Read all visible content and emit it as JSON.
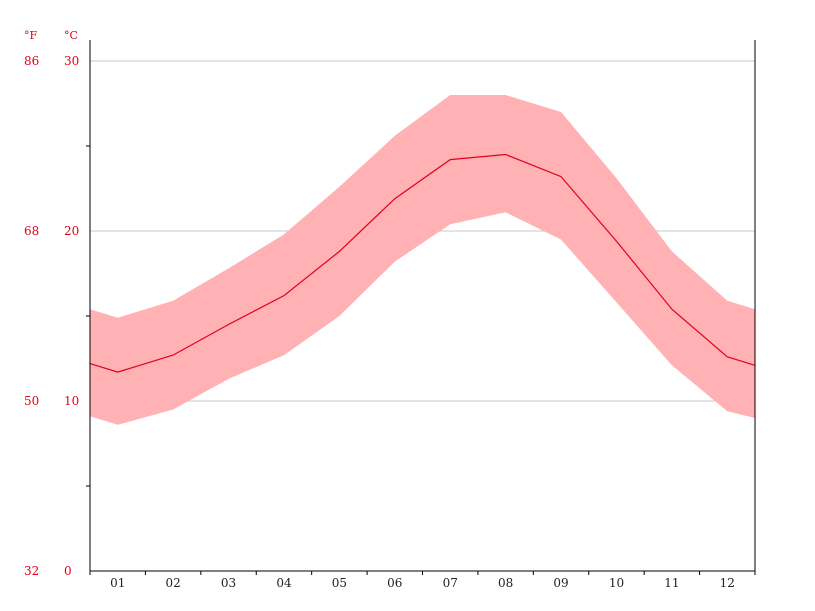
{
  "chart_data": {
    "type": "area",
    "categories": [
      "01",
      "02",
      "03",
      "04",
      "05",
      "06",
      "07",
      "08",
      "09",
      "10",
      "11",
      "12"
    ],
    "series": [
      {
        "role": "range-high",
        "values": [
          14.9,
          15.9,
          17.8,
          19.8,
          22.6,
          25.6,
          28.0,
          28.0,
          27.0,
          23.1,
          18.8,
          15.9
        ]
      },
      {
        "role": "mean",
        "values": [
          11.7,
          12.7,
          14.5,
          16.2,
          18.8,
          21.9,
          24.2,
          24.5,
          23.2,
          19.4,
          15.4,
          12.6
        ]
      },
      {
        "role": "range-low",
        "values": [
          8.6,
          9.5,
          11.3,
          12.7,
          15.0,
          18.2,
          20.4,
          21.1,
          19.5,
          15.8,
          12.1,
          9.4
        ]
      }
    ],
    "edges": {
      "left": {
        "high": 15.4,
        "mean": 12.2,
        "low": 9.1
      },
      "right": {
        "high": 15.4,
        "mean": 12.1,
        "low": 9.0
      }
    },
    "y_celsius": {
      "label": "°C",
      "ticks": [
        "0",
        "10",
        "20",
        "30"
      ],
      "ylim": [
        0,
        30
      ]
    },
    "y_fahrenheit": {
      "label": "°F",
      "ticks": [
        "32",
        "50",
        "68",
        "86"
      ]
    },
    "grid": true,
    "colors": {
      "band": "#ffb1b3",
      "line": "#e3001b",
      "grid": "#c8c8c8",
      "axis": "#000000",
      "tick_text": "#e3001b"
    }
  }
}
